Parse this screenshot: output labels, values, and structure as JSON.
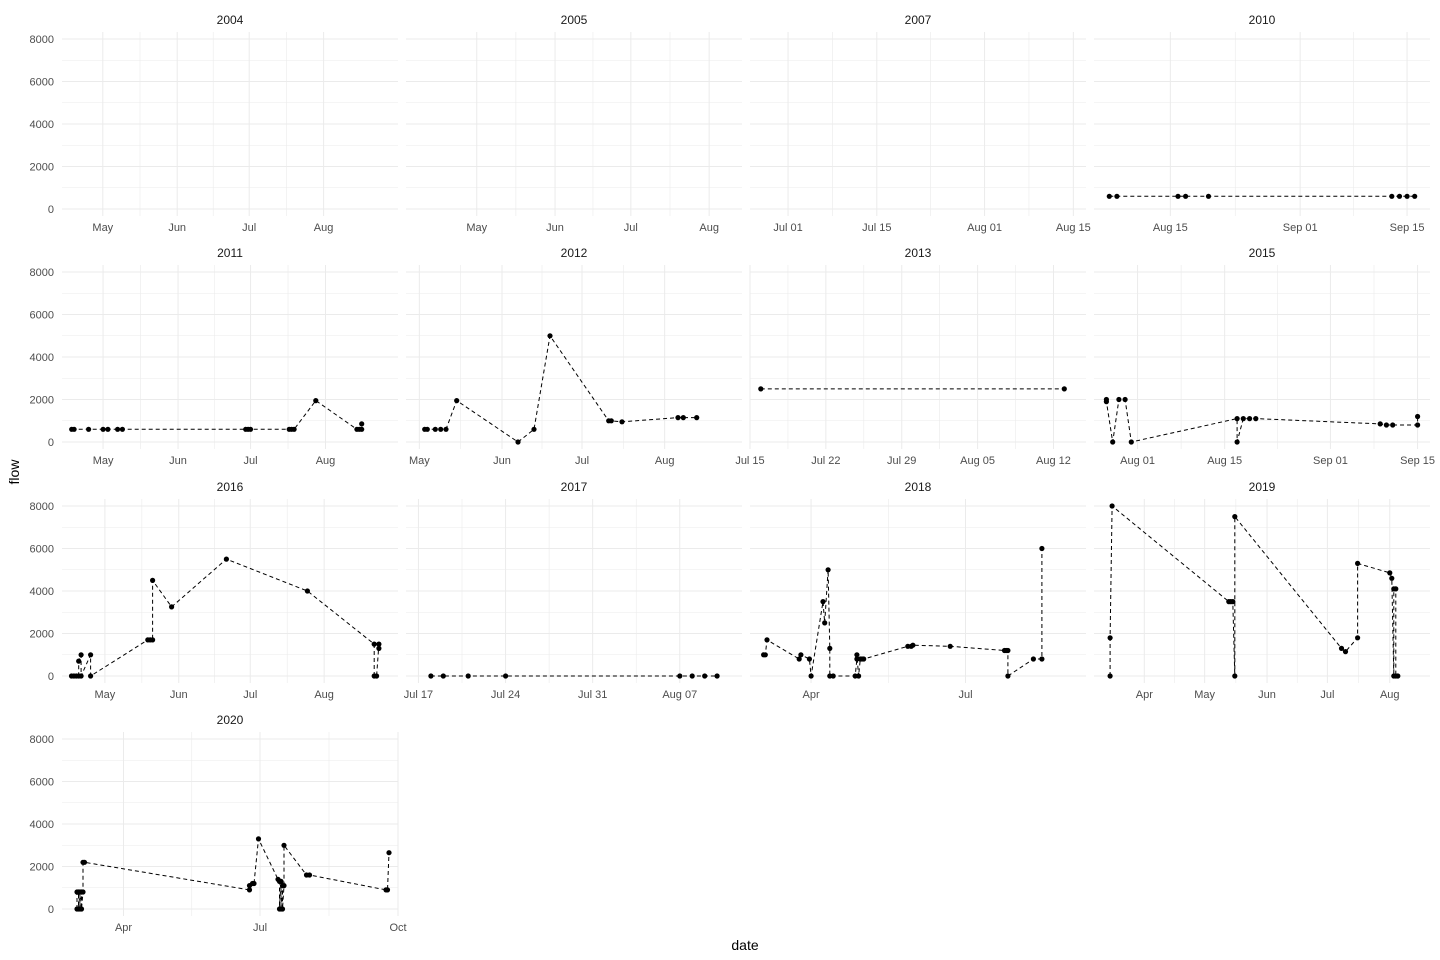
{
  "chart_data": {
    "type": "line",
    "xlabel": "date",
    "ylabel": "flow",
    "ylim": [
      0,
      8000
    ],
    "y_ticks": [
      "0",
      "2000",
      "4000",
      "6000",
      "8000"
    ],
    "grid": true,
    "line_style": "dashed",
    "marker": "point",
    "colors": {
      "line": "#000000",
      "grid": "#ebebeb",
      "strip_text": "#1a1a1a",
      "tick_text": "#4d4d4d"
    },
    "panels": [
      {
        "title": "2004",
        "xlim": [
          "2004-04-14",
          "2004-09-01"
        ],
        "x_ticks": [
          [
            "2004-05-01",
            "May"
          ],
          [
            "2004-06-01",
            "Jun"
          ],
          [
            "2004-07-01",
            "Jul"
          ],
          [
            "2004-08-01",
            "Aug"
          ]
        ],
        "points": []
      },
      {
        "title": "2005",
        "xlim": [
          "2005-04-03",
          "2005-08-14"
        ],
        "x_ticks": [
          [
            "2005-05-01",
            "May"
          ],
          [
            "2005-06-01",
            "Jun"
          ],
          [
            "2005-07-01",
            "Jul"
          ],
          [
            "2005-08-01",
            "Aug"
          ]
        ],
        "points": []
      },
      {
        "title": "2007",
        "xlim": [
          "2007-06-25",
          "2007-08-17"
        ],
        "x_ticks": [
          [
            "2007-07-01",
            "Jul 01"
          ],
          [
            "2007-07-15",
            "Jul 15"
          ],
          [
            "2007-08-01",
            "Aug 01"
          ],
          [
            "2007-08-15",
            "Aug 15"
          ]
        ],
        "points": []
      },
      {
        "title": "2010",
        "xlim": [
          "2010-08-05",
          "2010-09-18"
        ],
        "x_ticks": [
          [
            "2010-08-15",
            "Aug 15"
          ],
          [
            "2010-09-01",
            "Sep 01"
          ],
          [
            "2010-09-15",
            "Sep 15"
          ]
        ],
        "points": [
          [
            "2010-08-07",
            600
          ],
          [
            "2010-08-08",
            600
          ],
          [
            "2010-08-16",
            600
          ],
          [
            "2010-08-17",
            600
          ],
          [
            "2010-08-20",
            600
          ],
          [
            "2010-09-13",
            600
          ],
          [
            "2010-09-14",
            600
          ],
          [
            "2010-09-15",
            600
          ],
          [
            "2010-09-16",
            600
          ]
        ]
      },
      {
        "title": "2011",
        "xlim": [
          "2011-04-14",
          "2011-08-31"
        ],
        "x_ticks": [
          [
            "2011-05-01",
            "May"
          ],
          [
            "2011-06-01",
            "Jun"
          ],
          [
            "2011-07-01",
            "Jul"
          ],
          [
            "2011-08-01",
            "Aug"
          ]
        ],
        "points": [
          [
            "2011-04-18",
            600
          ],
          [
            "2011-04-19",
            600
          ],
          [
            "2011-04-25",
            600
          ],
          [
            "2011-05-01",
            600
          ],
          [
            "2011-05-03",
            600
          ],
          [
            "2011-05-07",
            600
          ],
          [
            "2011-05-09",
            600
          ],
          [
            "2011-06-29",
            600
          ],
          [
            "2011-06-30",
            600
          ],
          [
            "2011-07-01",
            600
          ],
          [
            "2011-07-17",
            600
          ],
          [
            "2011-07-18",
            600
          ],
          [
            "2011-07-19",
            600
          ],
          [
            "2011-07-28",
            1950
          ],
          [
            "2011-08-14",
            600
          ],
          [
            "2011-08-15",
            600
          ],
          [
            "2011-08-16",
            850
          ],
          [
            "2011-08-16",
            600
          ]
        ]
      },
      {
        "title": "2012",
        "xlim": [
          "2012-04-26",
          "2012-08-30"
        ],
        "x_ticks": [
          [
            "2012-05-01",
            "May"
          ],
          [
            "2012-06-01",
            "Jun"
          ],
          [
            "2012-07-01",
            "Jul"
          ],
          [
            "2012-08-01",
            "Aug"
          ]
        ],
        "points": [
          [
            "2012-05-03",
            600
          ],
          [
            "2012-05-04",
            600
          ],
          [
            "2012-05-07",
            600
          ],
          [
            "2012-05-09",
            600
          ],
          [
            "2012-05-11",
            600
          ],
          [
            "2012-05-15",
            1950
          ],
          [
            "2012-06-07",
            0
          ],
          [
            "2012-06-13",
            600
          ],
          [
            "2012-06-19",
            5000
          ],
          [
            "2012-07-11",
            1000
          ],
          [
            "2012-07-12",
            1000
          ],
          [
            "2012-07-16",
            950
          ],
          [
            "2012-08-06",
            1150
          ],
          [
            "2012-08-08",
            1150
          ],
          [
            "2012-08-13",
            1150
          ]
        ]
      },
      {
        "title": "2013",
        "xlim": [
          "2013-07-15",
          "2013-08-15"
        ],
        "x_ticks": [
          [
            "2013-07-15",
            "Jul 15"
          ],
          [
            "2013-07-22",
            "Jul 22"
          ],
          [
            "2013-07-29",
            "Jul 29"
          ],
          [
            "2013-08-05",
            "Aug 05"
          ],
          [
            "2013-08-12",
            "Aug 12"
          ]
        ],
        "points": [
          [
            "2013-07-16",
            2500
          ],
          [
            "2013-08-13",
            2500
          ]
        ]
      },
      {
        "title": "2015",
        "xlim": [
          "2015-07-25",
          "2015-09-17"
        ],
        "x_ticks": [
          [
            "2015-08-01",
            "Aug 01"
          ],
          [
            "2015-08-15",
            "Aug 15"
          ],
          [
            "2015-09-01",
            "Sep 01"
          ],
          [
            "2015-09-15",
            "Sep 15"
          ]
        ],
        "points": [
          [
            "2015-07-27",
            2000
          ],
          [
            "2015-07-27",
            1900
          ],
          [
            "2015-07-28",
            0
          ],
          [
            "2015-07-29",
            2000
          ],
          [
            "2015-07-30",
            2000
          ],
          [
            "2015-07-31",
            0
          ],
          [
            "2015-08-17",
            1100
          ],
          [
            "2015-08-17",
            0
          ],
          [
            "2015-08-18",
            1100
          ],
          [
            "2015-08-19",
            1100
          ],
          [
            "2015-08-20",
            1100
          ],
          [
            "2015-09-09",
            850
          ],
          [
            "2015-09-10",
            800
          ],
          [
            "2015-09-11",
            800
          ],
          [
            "2015-09-15",
            800
          ],
          [
            "2015-09-15",
            1200
          ]
        ]
      },
      {
        "title": "2016",
        "xlim": [
          "2016-04-13",
          "2016-09-01"
        ],
        "x_ticks": [
          [
            "2016-05-01",
            "May"
          ],
          [
            "2016-06-01",
            "Jun"
          ],
          [
            "2016-07-01",
            "Jul"
          ],
          [
            "2016-08-01",
            "Aug"
          ]
        ],
        "points": [
          [
            "2016-04-17",
            0
          ],
          [
            "2016-04-18",
            0
          ],
          [
            "2016-04-19",
            0
          ],
          [
            "2016-04-20",
            0
          ],
          [
            "2016-04-20",
            700
          ],
          [
            "2016-04-21",
            1000
          ],
          [
            "2016-04-21",
            0
          ],
          [
            "2016-04-25",
            1000
          ],
          [
            "2016-04-25",
            0
          ],
          [
            "2016-05-19",
            1700
          ],
          [
            "2016-05-20",
            1700
          ],
          [
            "2016-05-21",
            1700
          ],
          [
            "2016-05-21",
            4500
          ],
          [
            "2016-05-29",
            3250
          ],
          [
            "2016-06-21",
            5500
          ],
          [
            "2016-07-25",
            4000
          ],
          [
            "2016-08-22",
            1500
          ],
          [
            "2016-08-22",
            0
          ],
          [
            "2016-08-23",
            0
          ],
          [
            "2016-08-24",
            1500
          ],
          [
            "2016-08-24",
            1300
          ]
        ]
      },
      {
        "title": "2017",
        "xlim": [
          "2017-07-16",
          "2017-08-12"
        ],
        "x_ticks": [
          [
            "2017-07-17",
            "Jul 17"
          ],
          [
            "2017-07-24",
            "Jul 24"
          ],
          [
            "2017-07-31",
            "Jul 31"
          ],
          [
            "2017-08-07",
            "Aug 07"
          ]
        ],
        "points": [
          [
            "2017-07-18",
            0
          ],
          [
            "2017-07-19",
            0
          ],
          [
            "2017-07-21",
            0
          ],
          [
            "2017-07-24",
            0
          ],
          [
            "2017-08-07",
            0
          ],
          [
            "2017-08-08",
            0
          ],
          [
            "2017-08-09",
            0
          ],
          [
            "2017-08-10",
            0
          ]
        ]
      },
      {
        "title": "2018",
        "xlim": [
          "2018-02-24",
          "2018-09-10"
        ],
        "x_ticks": [
          [
            "2018-04-01",
            "Apr"
          ],
          [
            "2018-07-01",
            "Jul"
          ]
        ],
        "points": [
          [
            "2018-03-04",
            1000
          ],
          [
            "2018-03-05",
            1000
          ],
          [
            "2018-03-06",
            1700
          ],
          [
            "2018-03-25",
            800
          ],
          [
            "2018-03-26",
            1000
          ],
          [
            "2018-03-31",
            800
          ],
          [
            "2018-04-01",
            0
          ],
          [
            "2018-04-08",
            3500
          ],
          [
            "2018-04-09",
            2500
          ],
          [
            "2018-04-11",
            5000
          ],
          [
            "2018-04-12",
            1300
          ],
          [
            "2018-04-12",
            0
          ],
          [
            "2018-04-14",
            0
          ],
          [
            "2018-04-27",
            0
          ],
          [
            "2018-04-28",
            800
          ],
          [
            "2018-04-28",
            1000
          ],
          [
            "2018-04-29",
            0
          ],
          [
            "2018-04-30",
            800
          ],
          [
            "2018-05-01",
            800
          ],
          [
            "2018-05-02",
            800
          ],
          [
            "2018-05-28",
            1400
          ],
          [
            "2018-05-30",
            1400
          ],
          [
            "2018-05-31",
            1450
          ],
          [
            "2018-06-22",
            1400
          ],
          [
            "2018-07-24",
            1200
          ],
          [
            "2018-07-25",
            1200
          ],
          [
            "2018-07-26",
            1200
          ],
          [
            "2018-07-26",
            0
          ],
          [
            "2018-08-10",
            800
          ],
          [
            "2018-08-15",
            800
          ],
          [
            "2018-08-15",
            6000
          ]
        ]
      },
      {
        "title": "2019",
        "xlim": [
          "2019-03-07",
          "2019-08-21"
        ],
        "x_ticks": [
          [
            "2019-04-01",
            "Apr"
          ],
          [
            "2019-05-01",
            "May"
          ],
          [
            "2019-06-01",
            "Jun"
          ],
          [
            "2019-07-01",
            "Jul"
          ],
          [
            "2019-08-01",
            "Aug"
          ]
        ],
        "points": [
          [
            "2019-03-15",
            0
          ],
          [
            "2019-03-15",
            1800
          ],
          [
            "2019-03-16",
            8000
          ],
          [
            "2019-05-13",
            3500
          ],
          [
            "2019-05-14",
            3500
          ],
          [
            "2019-05-15",
            3500
          ],
          [
            "2019-05-16",
            0
          ],
          [
            "2019-05-16",
            7500
          ],
          [
            "2019-07-08",
            1300
          ],
          [
            "2019-07-10",
            1150
          ],
          [
            "2019-07-16",
            1800
          ],
          [
            "2019-07-16",
            5300
          ],
          [
            "2019-08-01",
            4850
          ],
          [
            "2019-08-02",
            4600
          ],
          [
            "2019-08-03",
            0
          ],
          [
            "2019-08-03",
            4100
          ],
          [
            "2019-08-04",
            4100
          ],
          [
            "2019-08-04",
            0
          ],
          [
            "2019-08-05",
            0
          ]
        ]
      },
      {
        "title": "2020",
        "xlim": [
          "2020-02-20",
          "2020-10-01"
        ],
        "x_ticks": [
          [
            "2020-04-01",
            "Apr"
          ],
          [
            "2020-07-01",
            "Jul"
          ],
          [
            "2020-10-01",
            "Oct"
          ]
        ],
        "points": [
          [
            "2020-03-01",
            0
          ],
          [
            "2020-03-01",
            800
          ],
          [
            "2020-03-02",
            800
          ],
          [
            "2020-03-02",
            0
          ],
          [
            "2020-03-03",
            800
          ],
          [
            "2020-03-03",
            0
          ],
          [
            "2020-03-04",
            800
          ],
          [
            "2020-03-04",
            0
          ],
          [
            "2020-03-05",
            800
          ],
          [
            "2020-03-05",
            2200
          ],
          [
            "2020-03-06",
            2200
          ],
          [
            "2020-06-24",
            900
          ],
          [
            "2020-06-24",
            1100
          ],
          [
            "2020-06-26",
            1200
          ],
          [
            "2020-06-27",
            1200
          ],
          [
            "2020-06-30",
            3300
          ],
          [
            "2020-07-13",
            1400
          ],
          [
            "2020-07-14",
            1300
          ],
          [
            "2020-07-14",
            0
          ],
          [
            "2020-07-15",
            1300
          ],
          [
            "2020-07-15",
            0
          ],
          [
            "2020-07-16",
            1100
          ],
          [
            "2020-07-16",
            0
          ],
          [
            "2020-07-17",
            1100
          ],
          [
            "2020-07-17",
            3000
          ],
          [
            "2020-08-01",
            1600
          ],
          [
            "2020-08-03",
            1600
          ],
          [
            "2020-09-23",
            900
          ],
          [
            "2020-09-24",
            900
          ],
          [
            "2020-09-25",
            2650
          ]
        ]
      }
    ]
  }
}
